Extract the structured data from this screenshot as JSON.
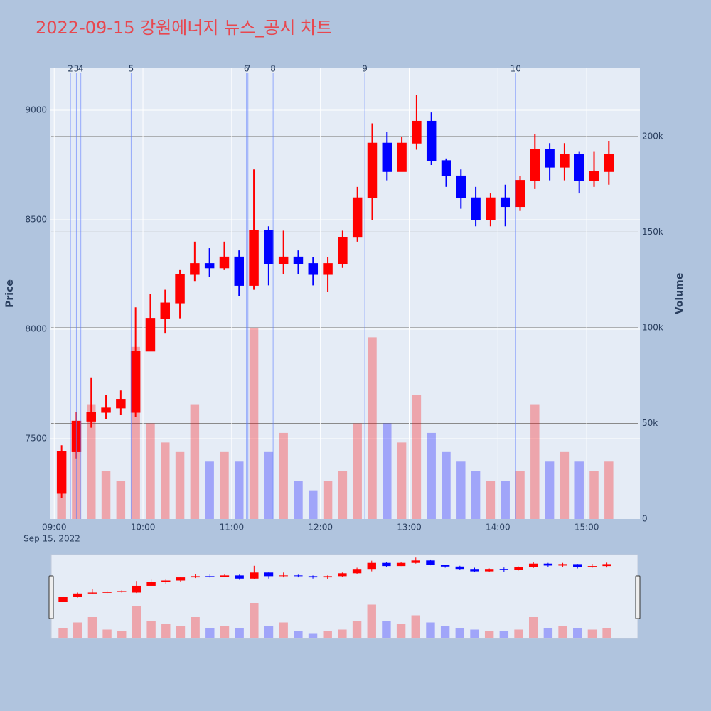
{
  "chart_data": {
    "type": "candlestick",
    "title": "2022-09-15 강원에너지 뉴스_공시 차트",
    "y_label": "Price",
    "y2_label": "Volume",
    "x_date_label": "Sep 15, 2022",
    "increasing_color": "#ff0000",
    "decreasing_color": "#0000ff",
    "x": [
      "2022-09-15 09:00",
      "2022-09-15 09:10",
      "2022-09-15 09:20",
      "2022-09-15 09:30",
      "2022-09-15 09:40",
      "2022-09-15 09:50",
      "2022-09-15 10:00",
      "2022-09-15 10:10",
      "2022-09-15 10:20",
      "2022-09-15 10:30",
      "2022-09-15 10:40",
      "2022-09-15 10:50",
      "2022-09-15 11:00",
      "2022-09-15 11:10",
      "2022-09-15 11:20",
      "2022-09-15 11:30",
      "2022-09-15 11:40",
      "2022-09-15 11:50",
      "2022-09-15 12:00",
      "2022-09-15 12:10",
      "2022-09-15 12:20",
      "2022-09-15 12:30",
      "2022-09-15 12:40",
      "2022-09-15 12:50",
      "2022-09-15 13:00",
      "2022-09-15 13:10",
      "2022-09-15 13:20",
      "2022-09-15 13:30",
      "2022-09-15 13:40",
      "2022-09-15 13:50",
      "2022-09-15 14:00",
      "2022-09-15 14:10",
      "2022-09-15 14:20",
      "2022-09-15 14:30",
      "2022-09-15 14:40",
      "2022-09-15 14:50",
      "2022-09-15 15:00",
      "2022-09-15 15:10"
    ],
    "open": [
      7250,
      7440,
      7580,
      7620,
      7640,
      7620,
      7900,
      8050,
      8120,
      8250,
      8300,
      8280,
      8330,
      8200,
      8450,
      8300,
      8330,
      8300,
      8250,
      8300,
      8420,
      8600,
      8850,
      8720,
      8850,
      8950,
      8770,
      8700,
      8600,
      8500,
      8600,
      8560,
      8680,
      8820,
      8740,
      8800,
      8680,
      8720
    ],
    "high": [
      7470,
      7620,
      7780,
      7700,
      7720,
      8100,
      8160,
      8180,
      8270,
      8400,
      8370,
      8400,
      8360,
      8730,
      8470,
      8450,
      8360,
      8330,
      8330,
      8450,
      8650,
      8940,
      8900,
      8880,
      9070,
      8990,
      8780,
      8730,
      8650,
      8620,
      8660,
      8700,
      8890,
      8850,
      8850,
      8810,
      8810,
      8860
    ],
    "low": [
      7230,
      7410,
      7550,
      7590,
      7610,
      7600,
      7920,
      7980,
      8050,
      8220,
      8240,
      8270,
      8150,
      8180,
      8200,
      8250,
      8250,
      8200,
      8170,
      8280,
      8400,
      8500,
      8680,
      8720,
      8820,
      8750,
      8650,
      8550,
      8470,
      8470,
      8470,
      8540,
      8640,
      8680,
      8680,
      8620,
      8650,
      8660
    ],
    "close": [
      7440,
      7580,
      7620,
      7640,
      7680,
      7900,
      8050,
      8120,
      8250,
      8300,
      8280,
      8330,
      8200,
      8450,
      8300,
      8330,
      8300,
      8250,
      8300,
      8420,
      8600,
      8850,
      8720,
      8850,
      8950,
      8770,
      8700,
      8600,
      8500,
      8600,
      8560,
      8680,
      8820,
      8740,
      8800,
      8680,
      8720,
      8800
    ],
    "volume": [
      30000,
      45000,
      60000,
      25000,
      20000,
      90000,
      50000,
      40000,
      35000,
      60000,
      30000,
      35000,
      30000,
      100000,
      35000,
      45000,
      20000,
      15000,
      20000,
      25000,
      50000,
      95000,
      50000,
      40000,
      65000,
      45000,
      35000,
      30000,
      25000,
      20000,
      20000,
      25000,
      60000,
      30000,
      35000,
      30000,
      25000,
      30000
    ],
    "xlim": [
      "2022-09-15 08:57",
      "2022-09-15 15:36"
    ],
    "xticks": [
      {
        "value": "2022-09-15 09:00",
        "label": "09:00"
      },
      {
        "value": "2022-09-15 10:00",
        "label": "10:00"
      },
      {
        "value": "2022-09-15 11:00",
        "label": "11:00"
      },
      {
        "value": "2022-09-15 12:00",
        "label": "12:00"
      },
      {
        "value": "2022-09-15 13:00",
        "label": "13:00"
      },
      {
        "value": "2022-09-15 14:00",
        "label": "14:00"
      },
      {
        "value": "2022-09-15 15:00",
        "label": "15:00"
      }
    ],
    "ylim": [
      7133,
      9195
    ],
    "yticks": [
      7500,
      8000,
      8500,
      9000
    ],
    "y2lim": [
      0,
      236000
    ],
    "y2ticks": [
      0,
      {
        "value": 50000,
        "label": "50k"
      },
      {
        "value": 100000,
        "label": "100k"
      },
      {
        "value": 150000,
        "label": "150k"
      },
      {
        "value": 200000,
        "label": "200k"
      }
    ],
    "news": [
      {
        "x": "2022-09-15 09:11",
        "label": "2"
      },
      {
        "x": "2022-09-15 09:15",
        "label": "3"
      },
      {
        "x": "2022-09-15 09:18",
        "label": "4"
      },
      {
        "x": "2022-09-15 09:52",
        "label": "5"
      },
      {
        "x": "2022-09-15 11:10",
        "label": "6"
      },
      {
        "x": "2022-09-15 11:11",
        "label": "7"
      },
      {
        "x": "2022-09-15 11:28",
        "label": "8"
      },
      {
        "x": "2022-09-15 12:30",
        "label": "9"
      },
      {
        "x": "2022-09-15 14:12",
        "label": "10"
      }
    ],
    "grid": true
  }
}
